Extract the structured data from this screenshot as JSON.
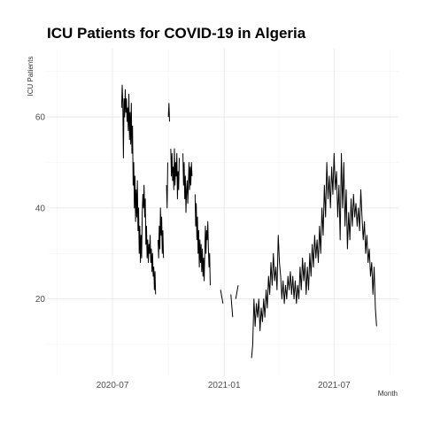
{
  "chart_data": {
    "type": "line",
    "title": "ICU Patients for COVID-19 in Algeria",
    "xlabel": "Month",
    "ylabel": "ICU Patients",
    "x_type": "date",
    "xlim": [
      "2020-03-15",
      "2021-10-15"
    ],
    "ylim": [
      3,
      75
    ],
    "grid": true,
    "legend": "none",
    "x_ticks": [
      {
        "value": "2020-07-01",
        "label": "2020-07"
      },
      {
        "value": "2021-01-01",
        "label": "2021-01"
      },
      {
        "value": "2021-07-01",
        "label": "2021-07"
      }
    ],
    "x_minor_ticks": [
      "2020-04-01",
      "2020-10-01",
      "2021-04-01",
      "2021-10-01"
    ],
    "y_ticks": [
      20,
      40,
      60
    ],
    "y_minor_ticks": [
      10,
      30,
      50,
      70
    ],
    "series": [
      {
        "color": "#000000",
        "segments": [
          [
            [
              "2020-07-16",
              62
            ],
            [
              "2020-07-17",
              67
            ],
            [
              "2020-07-18",
              63
            ],
            [
              "2020-07-19",
              51
            ],
            [
              "2020-07-20",
              64
            ],
            [
              "2020-07-21",
              60
            ],
            [
              "2020-07-22",
              66
            ],
            [
              "2020-07-23",
              61
            ],
            [
              "2020-07-24",
              64
            ],
            [
              "2020-07-25",
              59
            ],
            [
              "2020-07-26",
              62
            ],
            [
              "2020-07-27",
              57
            ],
            [
              "2020-07-28",
              65
            ],
            [
              "2020-07-29",
              55
            ],
            [
              "2020-07-30",
              61
            ],
            [
              "2020-07-31",
              54
            ],
            [
              "2020-08-01",
              63
            ],
            [
              "2020-08-02",
              52
            ],
            [
              "2020-08-03",
              58
            ],
            [
              "2020-08-04",
              45
            ],
            [
              "2020-08-05",
              50
            ],
            [
              "2020-08-06",
              40
            ],
            [
              "2020-08-07",
              47
            ],
            [
              "2020-08-08",
              37
            ],
            [
              "2020-08-09",
              44
            ],
            [
              "2020-08-10",
              38
            ],
            [
              "2020-08-11",
              46
            ],
            [
              "2020-08-12",
              35
            ],
            [
              "2020-08-13",
              40
            ],
            [
              "2020-08-14",
              30
            ],
            [
              "2020-08-15",
              36
            ],
            [
              "2020-08-16",
              28
            ],
            [
              "2020-08-17",
              34
            ],
            [
              "2020-08-18",
              29
            ],
            [
              "2020-08-19",
              39
            ],
            [
              "2020-08-20",
              43
            ],
            [
              "2020-08-21",
              40
            ],
            [
              "2020-08-22",
              45
            ],
            [
              "2020-08-23",
              38
            ],
            [
              "2020-08-24",
              42
            ],
            [
              "2020-08-25",
              32
            ],
            [
              "2020-08-26",
              36
            ],
            [
              "2020-08-27",
              29
            ],
            [
              "2020-08-28",
              33
            ],
            [
              "2020-08-29",
              28
            ],
            [
              "2020-08-30",
              32
            ],
            [
              "2020-08-31",
              30
            ],
            [
              "2020-09-01",
              34
            ],
            [
              "2020-09-02",
              28
            ],
            [
              "2020-09-03",
              31
            ],
            [
              "2020-09-04",
              26
            ],
            [
              "2020-09-05",
              30
            ],
            [
              "2020-09-06",
              25
            ],
            [
              "2020-09-07",
              27
            ],
            [
              "2020-09-08",
              22
            ],
            [
              "2020-09-09",
              26
            ],
            [
              "2020-09-10",
              21
            ]
          ],
          [
            [
              "2020-09-14",
              33
            ],
            [
              "2020-09-15",
              29
            ],
            [
              "2020-09-16",
              36
            ],
            [
              "2020-09-17",
              31
            ],
            [
              "2020-09-18",
              40
            ],
            [
              "2020-09-19",
              34
            ],
            [
              "2020-09-20",
              38
            ],
            [
              "2020-09-21",
              30
            ],
            [
              "2020-09-22",
              35
            ],
            [
              "2020-09-23",
              29
            ]
          ],
          [
            [
              "2020-09-28",
              45
            ],
            [
              "2020-09-29",
              40
            ],
            [
              "2020-09-30",
              50
            ]
          ],
          [
            [
              "2020-10-01",
              60
            ],
            [
              "2020-10-02",
              63
            ],
            [
              "2020-10-03",
              59
            ]
          ],
          [
            [
              "2020-10-05",
              53
            ],
            [
              "2020-10-06",
              47
            ],
            [
              "2020-10-07",
              52
            ],
            [
              "2020-10-08",
              46
            ],
            [
              "2020-10-09",
              49
            ],
            [
              "2020-10-10",
              44
            ],
            [
              "2020-10-11",
              53
            ],
            [
              "2020-10-12",
              45
            ],
            [
              "2020-10-13",
              50
            ],
            [
              "2020-10-14",
              47
            ],
            [
              "2020-10-15",
              52
            ],
            [
              "2020-10-16",
              42
            ],
            [
              "2020-10-17",
              48
            ],
            [
              "2020-10-18",
              44
            ],
            [
              "2020-10-19",
              51
            ]
          ],
          [
            [
              "2020-10-25",
              52
            ],
            [
              "2020-10-26",
              45
            ],
            [
              "2020-10-27",
              50
            ],
            [
              "2020-10-28",
              42
            ],
            [
              "2020-10-29",
              47
            ],
            [
              "2020-10-30",
              39
            ],
            [
              "2020-10-31",
              44
            ],
            [
              "2020-11-01",
              46
            ],
            [
              "2020-11-02",
              41
            ],
            [
              "2020-11-03",
              45
            ],
            [
              "2020-11-04",
              50
            ],
            [
              "2020-11-05",
              44
            ],
            [
              "2020-11-06",
              49
            ],
            [
              "2020-11-07",
              45
            ],
            [
              "2020-11-08",
              50
            ],
            [
              "2020-11-09",
              47
            ]
          ],
          [
            [
              "2020-11-14",
              43
            ],
            [
              "2020-11-15",
              36
            ],
            [
              "2020-11-16",
              41
            ],
            [
              "2020-11-17",
              33
            ],
            [
              "2020-11-18",
              38
            ],
            [
              "2020-11-19",
              30
            ],
            [
              "2020-11-20",
              35
            ],
            [
              "2020-11-21",
              27
            ],
            [
              "2020-11-22",
              33
            ],
            [
              "2020-11-23",
              28
            ],
            [
              "2020-11-24",
              32
            ],
            [
              "2020-11-25",
              26
            ],
            [
              "2020-11-26",
              31
            ],
            [
              "2020-11-27",
              25
            ],
            [
              "2020-11-28",
              29
            ],
            [
              "2020-11-29",
              24
            ],
            [
              "2020-11-30",
              30
            ],
            [
              "2020-12-01",
              36
            ],
            [
              "2020-12-02",
              30
            ],
            [
              "2020-12-03",
              35
            ],
            [
              "2020-12-04",
              33
            ],
            [
              "2020-12-05",
              37
            ],
            [
              "2020-12-06",
              31
            ],
            [
              "2020-12-07",
              27
            ],
            [
              "2020-12-08",
              30
            ],
            [
              "2020-12-09",
              23
            ]
          ],
          [
            [
              "2020-12-26",
              22
            ],
            [
              "2020-12-30",
              19
            ]
          ],
          [
            [
              "2021-01-12",
              21
            ],
            [
              "2021-01-15",
              16
            ]
          ],
          [
            [
              "2021-01-20",
              20
            ],
            [
              "2021-01-24",
              23
            ]
          ],
          [
            [
              "2021-02-15",
              7
            ],
            [
              "2021-02-17",
              10
            ],
            [
              "2021-02-19",
              20
            ],
            [
              "2021-02-21",
              14
            ],
            [
              "2021-02-23",
              19
            ],
            [
              "2021-02-25",
              16
            ],
            [
              "2021-02-27",
              20
            ],
            [
              "2021-03-01",
              13
            ],
            [
              "2021-03-03",
              18
            ],
            [
              "2021-03-05",
              15
            ],
            [
              "2021-03-07",
              20
            ],
            [
              "2021-03-09",
              16
            ],
            [
              "2021-03-11",
              22
            ],
            [
              "2021-03-13",
              18
            ],
            [
              "2021-03-15",
              25
            ],
            [
              "2021-03-17",
              21
            ],
            [
              "2021-03-19",
              28
            ],
            [
              "2021-03-21",
              23
            ],
            [
              "2021-03-23",
              30
            ],
            [
              "2021-03-25",
              24
            ],
            [
              "2021-03-27",
              27
            ],
            [
              "2021-03-29",
              22
            ],
            [
              "2021-03-31",
              34
            ],
            [
              "2021-04-02",
              28
            ],
            [
              "2021-04-04",
              25
            ],
            [
              "2021-04-06",
              20
            ],
            [
              "2021-04-08",
              24
            ],
            [
              "2021-04-10",
              19
            ],
            [
              "2021-04-12",
              23
            ],
            [
              "2021-04-14",
              20
            ],
            [
              "2021-04-16",
              25
            ],
            [
              "2021-04-18",
              22
            ],
            [
              "2021-04-20",
              26
            ],
            [
              "2021-04-22",
              21
            ],
            [
              "2021-04-24",
              25
            ],
            [
              "2021-04-26",
              20
            ],
            [
              "2021-04-28",
              24
            ],
            [
              "2021-04-30",
              19
            ],
            [
              "2021-05-02",
              23
            ],
            [
              "2021-05-04",
              20
            ],
            [
              "2021-05-06",
              27
            ],
            [
              "2021-05-08",
              22
            ],
            [
              "2021-05-10",
              29
            ],
            [
              "2021-05-12",
              24
            ],
            [
              "2021-05-14",
              28
            ],
            [
              "2021-05-16",
              21
            ],
            [
              "2021-05-18",
              27
            ],
            [
              "2021-05-20",
              22
            ],
            [
              "2021-05-22",
              30
            ],
            [
              "2021-05-24",
              25
            ],
            [
              "2021-05-26",
              32
            ],
            [
              "2021-05-28",
              27
            ],
            [
              "2021-05-30",
              34
            ],
            [
              "2021-06-01",
              29
            ],
            [
              "2021-06-03",
              33
            ],
            [
              "2021-06-05",
              28
            ],
            [
              "2021-06-07",
              36
            ],
            [
              "2021-06-09",
              30
            ],
            [
              "2021-06-11",
              40
            ],
            [
              "2021-06-13",
              34
            ],
            [
              "2021-06-15",
              45
            ],
            [
              "2021-06-17",
              38
            ],
            [
              "2021-06-19",
              50
            ],
            [
              "2021-06-21",
              42
            ],
            [
              "2021-06-23",
              47
            ],
            [
              "2021-06-25",
              40
            ],
            [
              "2021-06-27",
              49
            ],
            [
              "2021-06-29",
              43
            ],
            [
              "2021-07-01",
              52
            ],
            [
              "2021-07-03",
              44
            ],
            [
              "2021-07-05",
              48
            ],
            [
              "2021-07-07",
              38
            ],
            [
              "2021-07-09",
              45
            ],
            [
              "2021-07-11",
              33
            ],
            [
              "2021-07-13",
              52
            ],
            [
              "2021-07-15",
              40
            ],
            [
              "2021-07-17",
              50
            ],
            [
              "2021-07-19",
              36
            ],
            [
              "2021-07-21",
              44
            ],
            [
              "2021-07-23",
              31
            ],
            [
              "2021-07-25",
              39
            ],
            [
              "2021-07-27",
              33
            ],
            [
              "2021-07-29",
              42
            ],
            [
              "2021-07-31",
              36
            ],
            [
              "2021-08-02",
              43
            ],
            [
              "2021-08-04",
              38
            ],
            [
              "2021-08-06",
              41
            ],
            [
              "2021-08-08",
              36
            ],
            [
              "2021-08-10",
              40
            ],
            [
              "2021-08-12",
              35
            ],
            [
              "2021-08-14",
              44
            ],
            [
              "2021-08-16",
              38
            ],
            [
              "2021-08-18",
              33
            ],
            [
              "2021-08-20",
              37
            ],
            [
              "2021-08-22",
              30
            ],
            [
              "2021-08-24",
              34
            ],
            [
              "2021-08-26",
              28
            ],
            [
              "2021-08-28",
              31
            ],
            [
              "2021-08-30",
              25
            ],
            [
              "2021-09-01",
              28
            ],
            [
              "2021-09-03",
              21
            ],
            [
              "2021-09-05",
              27
            ],
            [
              "2021-09-07",
              18
            ],
            [
              "2021-09-09",
              14
            ]
          ]
        ]
      }
    ]
  }
}
